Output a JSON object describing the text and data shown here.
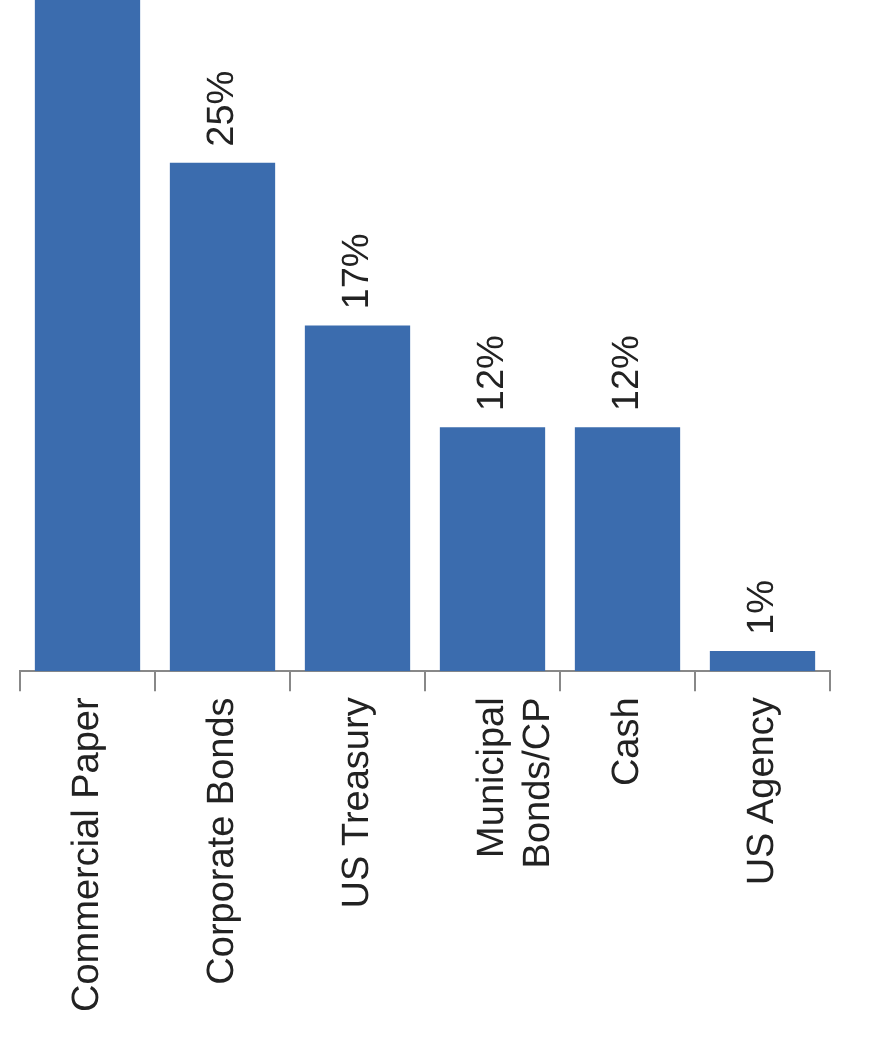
{
  "chart_data": {
    "type": "bar",
    "categories": [
      "Commercial Paper",
      "Corporate Bonds",
      "US Treasury",
      "Municipal Bonds/CP",
      "Cash",
      "US Agency"
    ],
    "values": [
      33,
      25,
      17,
      12,
      12,
      1
    ],
    "value_labels": [
      null,
      "25%",
      "17%",
      "12%",
      "12%",
      "1%"
    ],
    "color": "#3b6cae"
  }
}
